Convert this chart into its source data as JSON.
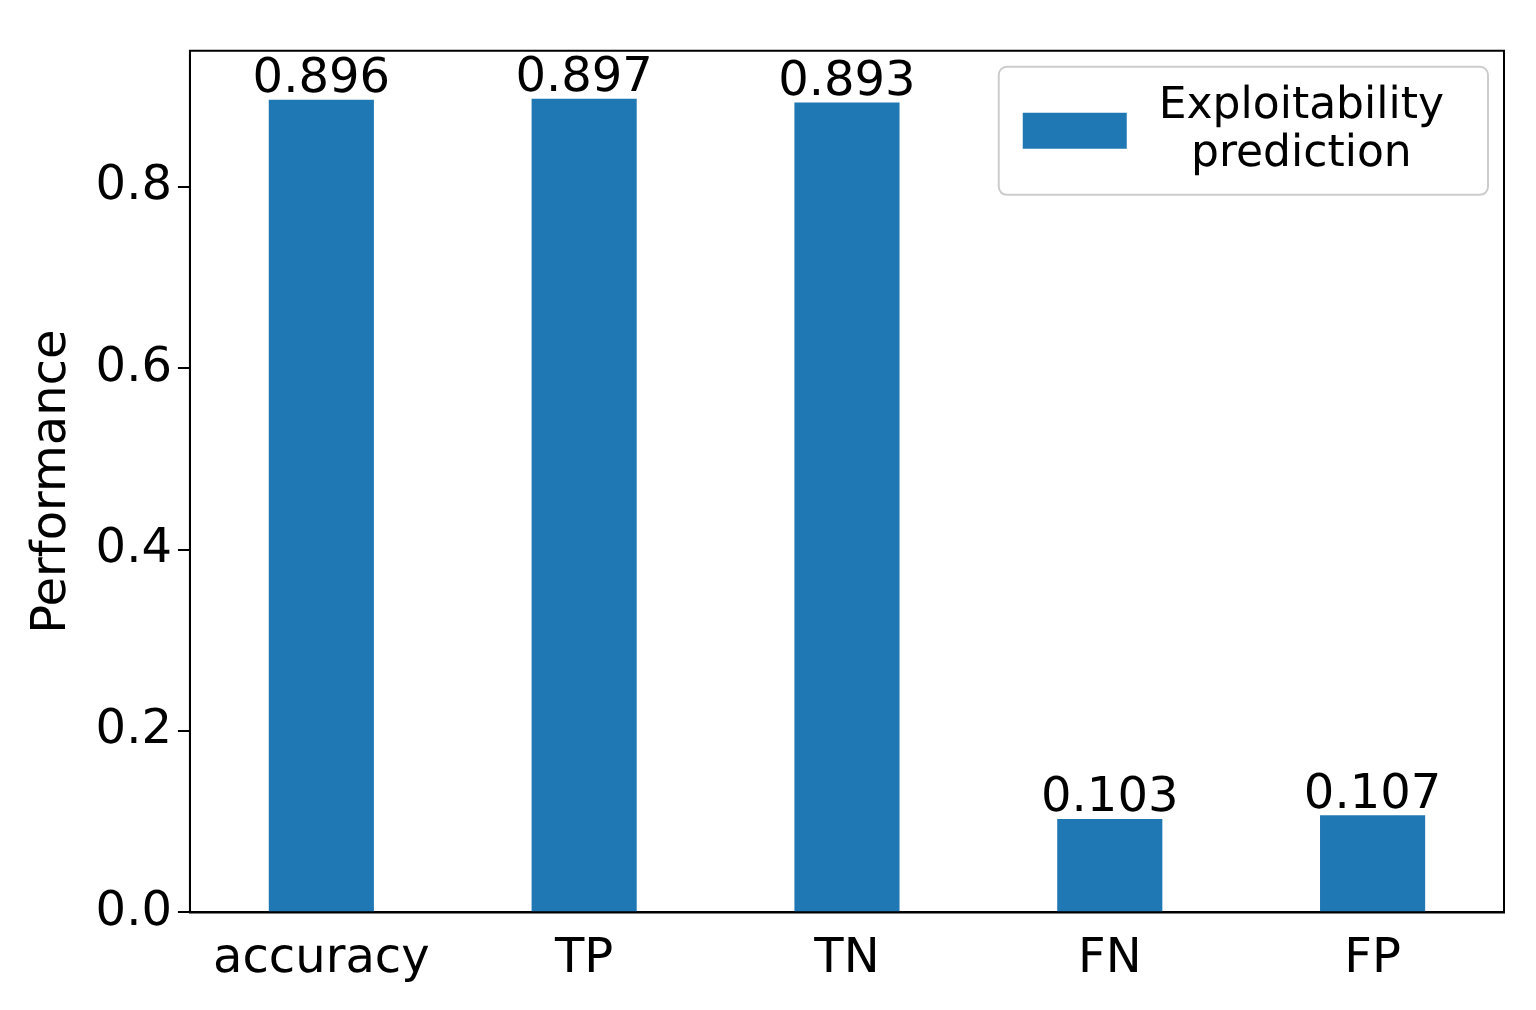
{
  "chart_data": {
    "type": "bar",
    "ylabel": "Performance",
    "categories": [
      "accuracy",
      "TP",
      "TN",
      "FN",
      "FP"
    ],
    "series": [
      {
        "name": "Exploitability prediction",
        "color": "#1f77b4",
        "values": [
          0.896,
          0.897,
          0.893,
          0.103,
          0.107
        ]
      }
    ],
    "ylim": [
      0,
      0.95
    ],
    "yticks": [
      {
        "value": 0,
        "label": "0.0"
      },
      0.2,
      0.4,
      0.6,
      0.8
    ],
    "data_labels": true,
    "legend": "top right",
    "grid": false
  }
}
